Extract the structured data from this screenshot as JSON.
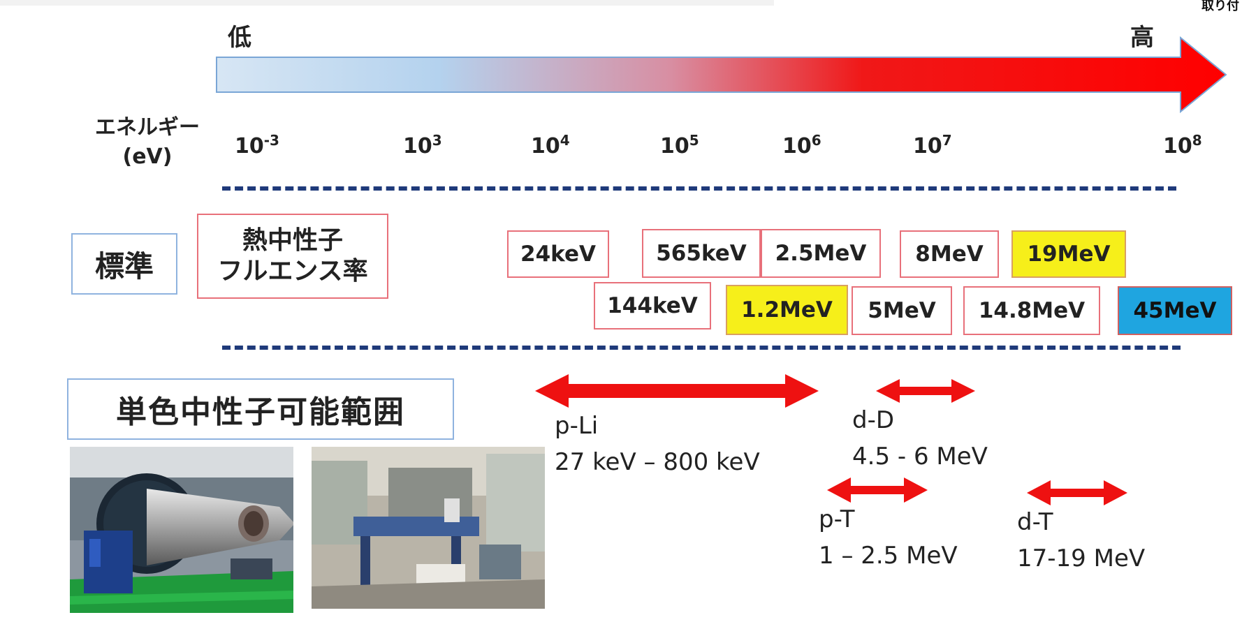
{
  "corner_text": "取り付",
  "energy_axis": {
    "low_label": "低",
    "high_label": "高",
    "axis_title_line1": "エネルギー",
    "axis_title_line2": "(eV)",
    "ticks": [
      {
        "base": "10",
        "exp": "-3"
      },
      {
        "base": "10",
        "exp": "3"
      },
      {
        "base": "10",
        "exp": "4"
      },
      {
        "base": "10",
        "exp": "5"
      },
      {
        "base": "10",
        "exp": "6"
      },
      {
        "base": "10",
        "exp": "7"
      },
      {
        "base": "10",
        "exp": "8"
      }
    ],
    "colors": {
      "low": "#bcd6ee",
      "high": "#ff0000"
    }
  },
  "standards": {
    "label": "標準",
    "thermal_line1": "熱中性子",
    "thermal_line2": "フルエンス率",
    "energies": [
      {
        "label": "24keV",
        "style": "plain"
      },
      {
        "label": "565keV",
        "style": "plain"
      },
      {
        "label": "2.5MeV",
        "style": "plain"
      },
      {
        "label": "8MeV",
        "style": "plain"
      },
      {
        "label": "19MeV",
        "style": "yellow"
      },
      {
        "label": "144keV",
        "style": "plain"
      },
      {
        "label": "1.2MeV",
        "style": "yellow"
      },
      {
        "label": "5MeV",
        "style": "plain"
      },
      {
        "label": "14.8MeV",
        "style": "plain"
      },
      {
        "label": "45MeV",
        "style": "blue"
      }
    ]
  },
  "mono": {
    "label": "単色中性子可能範囲",
    "reactions": [
      {
        "name": "p-Li",
        "range": "27 keV – 800 keV"
      },
      {
        "name": "d-D",
        "range": "4.5 - 6 MeV"
      },
      {
        "name": "p-T",
        "range": "1 – 2.5 MeV"
      },
      {
        "name": "d-T",
        "range": "17-19 MeV"
      }
    ]
  },
  "photos": [
    {
      "subject": "accelerator-photo"
    },
    {
      "subject": "facility-photo"
    }
  ]
}
